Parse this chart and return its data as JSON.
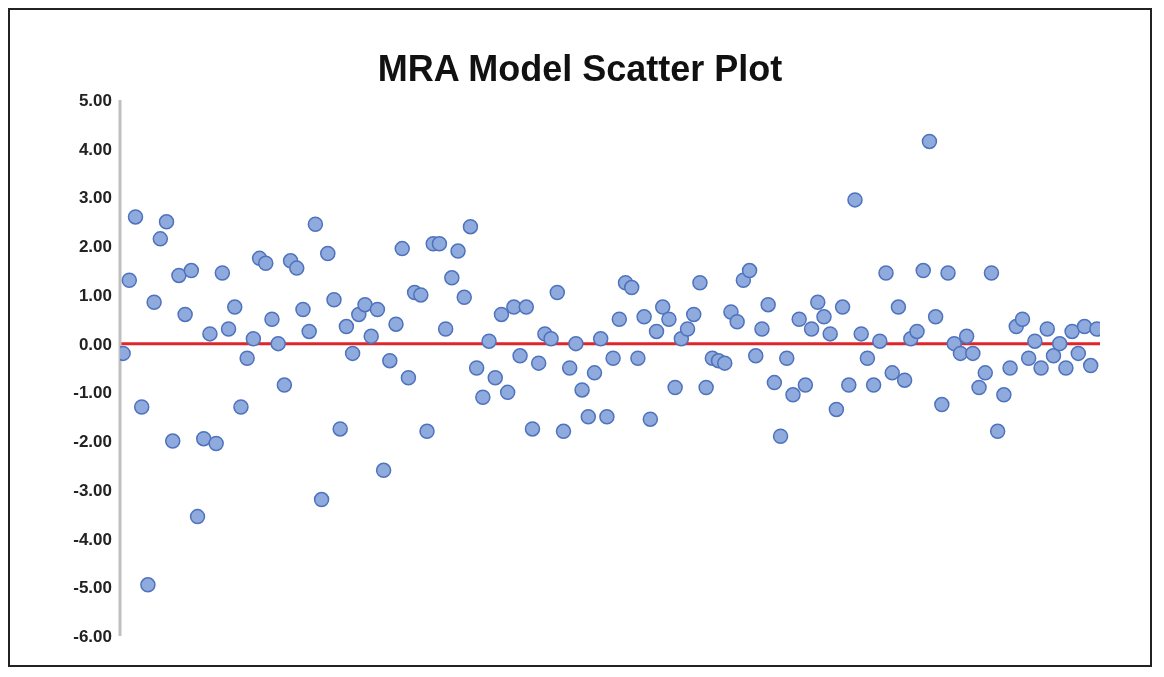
{
  "chart_data": {
    "type": "scatter",
    "title": "MRA Model Scatter Plot",
    "categories": [
      null,
      null,
      null,
      null,
      null,
      null,
      null,
      null,
      null,
      null,
      null,
      null,
      null,
      null,
      null,
      null,
      null,
      null,
      null,
      null,
      null,
      null,
      null,
      null,
      null,
      null,
      null,
      null,
      null,
      null,
      null,
      null,
      null,
      null,
      null,
      null,
      null,
      null,
      null,
      null,
      null,
      null,
      null,
      null,
      null,
      null,
      null,
      null,
      null,
      null,
      null,
      null,
      null,
      null,
      null,
      null,
      null,
      null,
      null,
      null,
      null,
      null,
      null,
      null,
      null,
      null,
      null,
      null,
      null,
      null,
      null,
      null,
      null,
      null,
      null,
      null,
      null,
      null,
      null,
      null,
      null,
      null,
      null,
      null,
      null,
      null,
      null,
      null,
      null,
      null,
      null,
      null,
      null,
      null,
      null,
      null,
      null,
      null,
      null,
      null,
      null,
      null,
      null,
      null,
      null,
      null,
      null,
      null,
      null,
      null,
      null,
      null,
      null,
      null,
      null,
      null,
      null,
      null,
      null,
      null,
      null,
      null,
      null,
      null,
      null,
      null,
      null,
      null,
      null,
      null,
      null,
      null,
      null,
      null,
      null,
      null,
      null,
      null,
      null,
      null,
      null,
      null,
      null,
      null,
      null,
      null,
      null,
      null,
      null,
      null,
      null,
      null,
      null,
      null,
      null,
      null,
      null,
      null
    ],
    "series": [
      {
        "color": "#8faadc",
        "values": [
          -0.2,
          1.3,
          2.6,
          -1.3,
          -4.95,
          0.85,
          2.15,
          2.5,
          -2.0,
          1.4,
          0.6,
          1.5,
          -3.55,
          -1.95,
          0.2,
          -2.05,
          1.45,
          0.3,
          0.75,
          -1.3,
          -0.3,
          0.1,
          1.75,
          1.65,
          0.5,
          0.0,
          -0.85,
          1.7,
          1.55,
          0.7,
          0.25,
          2.45,
          -3.2,
          1.85,
          0.9,
          -1.75,
          0.35,
          -0.2,
          0.6,
          0.8,
          0.15,
          0.7,
          -2.6,
          -0.35,
          0.4,
          1.95,
          -0.7,
          1.05,
          1.0,
          -1.8,
          2.05,
          2.05,
          0.3,
          1.35,
          1.9,
          0.95,
          2.4,
          -0.5,
          -1.1,
          0.05,
          -0.7,
          0.6,
          -1.0,
          0.75,
          -0.25,
          0.75,
          -1.75,
          -0.4,
          0.2,
          0.1,
          1.05,
          -1.8,
          -0.5,
          0.0,
          -0.95,
          -1.5,
          -0.6,
          0.1,
          -1.5,
          -0.3,
          0.5,
          1.25,
          1.15,
          -0.3,
          0.55,
          -1.55,
          0.25,
          0.75,
          0.5,
          -0.9,
          0.1,
          0.3,
          0.6,
          1.25,
          -0.9,
          -0.3,
          -0.35,
          -0.4,
          0.65,
          0.45,
          1.3,
          1.5,
          -0.25,
          0.3,
          0.8,
          -0.8,
          -1.9,
          -0.3,
          -1.05,
          0.5,
          -0.85,
          0.3,
          0.85,
          0.55,
          0.2,
          -1.35,
          0.75,
          -0.85,
          2.95,
          0.2,
          -0.3,
          -0.85,
          0.05,
          1.45,
          -0.6,
          0.75,
          -0.75,
          0.1,
          0.25,
          1.5,
          4.15,
          0.55,
          -1.25,
          1.45,
          0.0,
          -0.2,
          0.15,
          -0.2,
          -0.9,
          -0.6,
          1.45,
          -1.8,
          -1.05,
          -0.5,
          0.35,
          0.5,
          -0.3,
          0.05,
          -0.5,
          0.3,
          -0.25,
          0.0,
          -0.5,
          0.25,
          -0.2,
          0.35,
          -0.45,
          0.3
        ]
      }
    ],
    "ylim": [
      -6,
      5
    ],
    "yticks": [
      {
        "value": 5,
        "label": "5.00"
      },
      {
        "value": 4,
        "label": "4.00"
      },
      {
        "value": 3,
        "label": "3.00"
      },
      {
        "value": 2,
        "label": "2.00"
      },
      {
        "value": 1,
        "label": "1.00"
      },
      {
        "value": 0,
        "label": "0.00"
      },
      {
        "value": -1,
        "label": "-1.00"
      },
      {
        "value": -2,
        "label": "-2.00"
      },
      {
        "value": -3,
        "label": "-3.00"
      },
      {
        "value": -4,
        "label": "-4.00"
      },
      {
        "value": -5,
        "label": "-5.00"
      },
      {
        "value": -6,
        "label": "-6.00"
      }
    ],
    "ref_lines": [
      {
        "axis": "y",
        "value": 0,
        "color": "#e0262b"
      }
    ],
    "marker": "circle",
    "tick_labels": "y"
  }
}
